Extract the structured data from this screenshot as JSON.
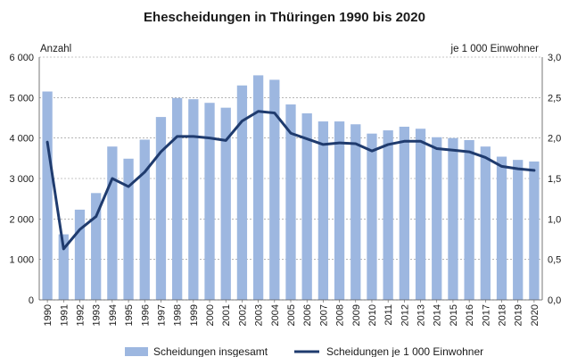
{
  "chart_data": {
    "type": "bar",
    "title": "Ehescheidungen in Thüringen 1990 bis 2020",
    "ylabel_left": "Anzahl",
    "ylabel_right": "je 1 000 Einwohner",
    "ylim_left": [
      0,
      6000
    ],
    "ylim_right": [
      0,
      3.0
    ],
    "yticks_left": [
      "0",
      "1 000",
      "2 000",
      "3 000",
      "4 000",
      "5 000",
      "6 000"
    ],
    "yticks_right": [
      "0,0",
      "0,5",
      "1,0",
      "1,5",
      "2,0",
      "2,5",
      "3,0"
    ],
    "grid": "horizontal",
    "legend_position": "bottom",
    "categories": [
      "1990",
      "1991",
      "1992",
      "1993",
      "1994",
      "1995",
      "1996",
      "1997",
      "1998",
      "1999",
      "2000",
      "2001",
      "2002",
      "2003",
      "2004",
      "2005",
      "2006",
      "2007",
      "2008",
      "2009",
      "2010",
      "2011",
      "2012",
      "2013",
      "2014",
      "2015",
      "2016",
      "2017",
      "2018",
      "2019",
      "2020"
    ],
    "series": [
      {
        "name": "Scheidungen insgesamt",
        "type": "bar",
        "axis": "left",
        "color": "#9db7e0",
        "values": [
          5150,
          1620,
          2230,
          2640,
          3790,
          3490,
          3960,
          4520,
          4990,
          4960,
          4870,
          4750,
          5300,
          5550,
          5440,
          4830,
          4610,
          4410,
          4410,
          4340,
          4110,
          4190,
          4280,
          4230,
          4020,
          4000,
          3950,
          3790,
          3540,
          3460,
          3420
        ]
      },
      {
        "name": "Scheidungen je 1 000 Einwohner",
        "type": "line",
        "axis": "right",
        "color": "#1f3b6e",
        "values": [
          1.95,
          0.63,
          0.87,
          1.03,
          1.5,
          1.4,
          1.58,
          1.83,
          2.02,
          2.02,
          2.0,
          1.97,
          2.21,
          2.33,
          2.31,
          2.06,
          1.99,
          1.92,
          1.94,
          1.93,
          1.84,
          1.92,
          1.96,
          1.96,
          1.87,
          1.85,
          1.83,
          1.76,
          1.65,
          1.62,
          1.6
        ]
      }
    ]
  }
}
